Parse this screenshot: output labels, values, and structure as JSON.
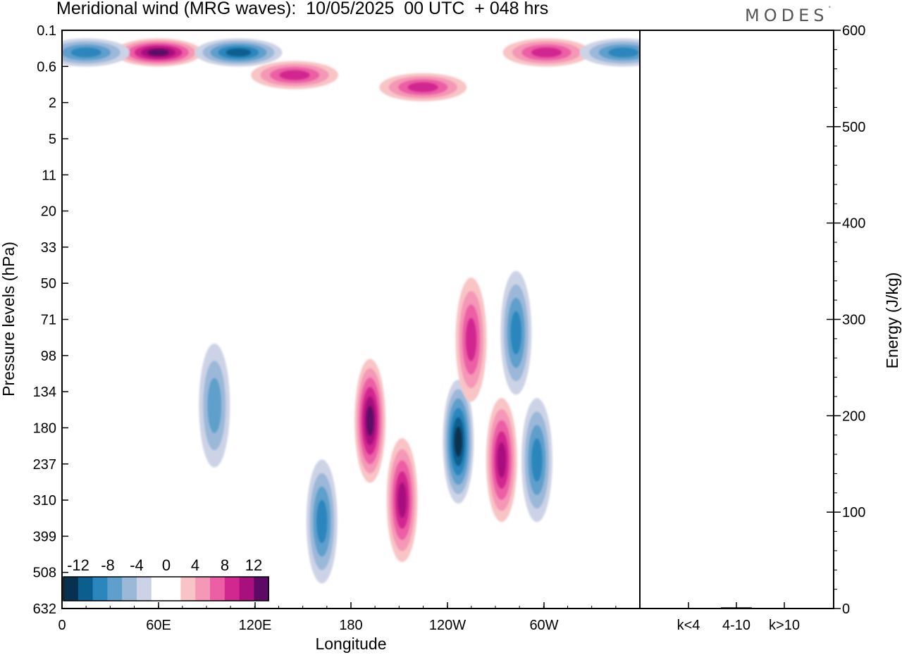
{
  "header": {
    "title": "Meridional wind (MRG waves):  10/05/2025  00 UTC  + 048 hrs",
    "logo_text": "MODES",
    "logo_mark": "°"
  },
  "chart_data": [
    {
      "type": "heatmap",
      "title": "Meridional wind (MRG waves):  10/05/2025  00 UTC  + 048 hrs",
      "xlabel": "Longitude",
      "ylabel": "Pressure levels (hPa)",
      "x_ticks": [
        "0",
        "60E",
        "120E",
        "180",
        "120W",
        "60W"
      ],
      "y_ticks": [
        "0.1",
        "0.6",
        "2",
        "5",
        "11",
        "20",
        "33",
        "50",
        "71",
        "98",
        "134",
        "180",
        "237",
        "310",
        "399",
        "508",
        "632"
      ],
      "colorbar": {
        "labels": [
          "-12",
          "-8",
          "-4",
          "0",
          "4",
          "8",
          "12"
        ],
        "colors": [
          "#08304f",
          "#0b5f8f",
          "#2a86bd",
          "#5f9fcc",
          "#9bb8d9",
          "#cdd3e6",
          "#ffffff",
          "#ffffff",
          "#f8c4c6",
          "#f597b6",
          "#ec5fa5",
          "#d1288f",
          "#a8107e",
          "#5c0a66"
        ]
      },
      "features": [
        {
          "lon": 60,
          "lev": 0.3,
          "value": 12,
          "sign": "positive"
        },
        {
          "lon": 110,
          "lev": 0.3,
          "value": -10,
          "sign": "negative"
        },
        {
          "lon": 15,
          "lev": 0.3,
          "value": -8,
          "sign": "negative"
        },
        {
          "lon": 145,
          "lev": 0.8,
          "value": 8,
          "sign": "positive"
        },
        {
          "lon": 225,
          "lev": 1.2,
          "value": 8,
          "sign": "positive"
        },
        {
          "lon": 302,
          "lev": 0.3,
          "value": 8,
          "sign": "positive"
        },
        {
          "lon": 350,
          "lev": 0.3,
          "value": -8,
          "sign": "negative"
        },
        {
          "lon": 192,
          "lev": 170,
          "value": 12,
          "sign": "positive"
        },
        {
          "lon": 212,
          "lev": 310,
          "value": 10,
          "sign": "positive"
        },
        {
          "lon": 247,
          "lev": 200,
          "value": -14,
          "sign": "negative"
        },
        {
          "lon": 274,
          "lev": 230,
          "value": 10,
          "sign": "positive"
        },
        {
          "lon": 296,
          "lev": 230,
          "value": -8,
          "sign": "negative"
        },
        {
          "lon": 162,
          "lev": 360,
          "value": -8,
          "sign": "negative"
        },
        {
          "lon": 95,
          "lev": 150,
          "value": -6,
          "sign": "negative"
        },
        {
          "lon": 255,
          "lev": 85,
          "value": 8,
          "sign": "positive"
        },
        {
          "lon": 283,
          "lev": 80,
          "value": -8,
          "sign": "negative"
        }
      ]
    },
    {
      "type": "bar",
      "categories": [
        "k<4",
        "4-10",
        "k>10"
      ],
      "values": [
        0.3,
        1.2,
        0.2
      ],
      "ylabel": "Energy (J/kg)",
      "ylim": [
        0,
        600
      ],
      "y_ticks": [
        "0",
        "100",
        "200",
        "300",
        "400",
        "500",
        "600"
      ]
    }
  ]
}
